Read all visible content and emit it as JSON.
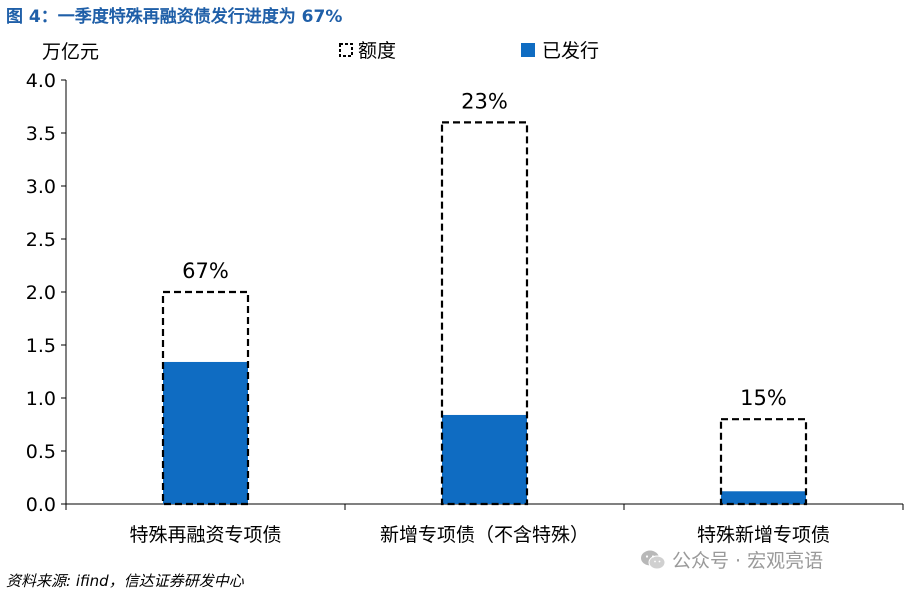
{
  "figure_title": "图 4：一季度特殊再融资债发行进度为 67%",
  "source": "资料来源: ifind，信达证券研发中心",
  "watermark_text": "公众号 · 宏观亮语",
  "colors": {
    "title": "#1f5fa8",
    "issued_bar": "#0f6cc2",
    "quota_outline": "#000000"
  },
  "chart_data": {
    "type": "bar",
    "unit_label": "万亿元",
    "categories": [
      "特殊再融资专项债",
      "新增专项债（不含特殊）",
      "特殊新增专项债"
    ],
    "series": [
      {
        "name": "额度",
        "style": "dashed-outline",
        "values": [
          2.0,
          3.6,
          0.8
        ]
      },
      {
        "name": "已发行",
        "style": "filled",
        "values": [
          1.34,
          0.84,
          0.12
        ]
      }
    ],
    "data_labels": [
      "67%",
      "23%",
      "15%"
    ],
    "ylim": [
      0,
      4.0
    ],
    "yticks": [
      "0.0",
      "0.5",
      "1.0",
      "1.5",
      "2.0",
      "2.5",
      "3.0",
      "3.5",
      "4.0"
    ],
    "legend_position": "top-center",
    "grid": false
  }
}
